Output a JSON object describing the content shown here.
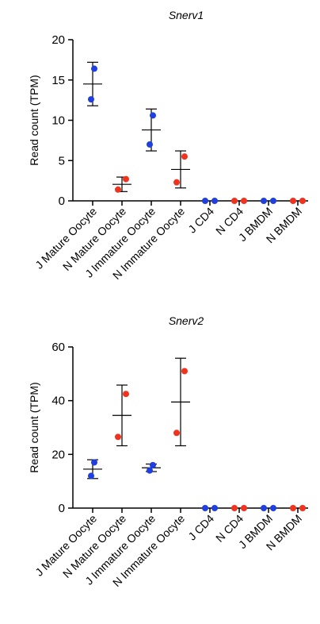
{
  "colors": {
    "J": "#1f3fe0",
    "N": "#f0321e",
    "axis": "#000000",
    "errorbar": "#000000"
  },
  "chart_data": [
    {
      "type": "scatter",
      "title": "Snerv1",
      "ylabel": "Read count (TPM)",
      "xlabel": "",
      "ylim": [
        0,
        20
      ],
      "yticks": [
        0,
        5,
        10,
        15,
        20
      ],
      "grid": false,
      "categories": [
        "J Mature Oocyte",
        "N Mature Oocyte",
        "J Immature Oocyte",
        "N Immature Oocyte",
        "J CD4",
        "N CD4",
        "J BMDM",
        "N BMDM"
      ],
      "groups": [
        {
          "category": "J Mature Oocyte",
          "strain": "J",
          "points": [
            16.4,
            12.6
          ],
          "mean": 14.5,
          "sd": 2.7
        },
        {
          "category": "N Mature Oocyte",
          "strain": "N",
          "points": [
            2.7,
            1.4
          ],
          "mean": 2.05,
          "sd": 0.9
        },
        {
          "category": "J Immature Oocyte",
          "strain": "J",
          "points": [
            10.6,
            7.0
          ],
          "mean": 8.8,
          "sd": 2.6
        },
        {
          "category": "N Immature Oocyte",
          "strain": "N",
          "points": [
            5.5,
            2.3
          ],
          "mean": 3.9,
          "sd": 2.3
        },
        {
          "category": "J CD4",
          "strain": "J",
          "points": [
            0,
            0
          ],
          "mean": 0,
          "sd": 0
        },
        {
          "category": "N CD4",
          "strain": "N",
          "points": [
            0,
            0
          ],
          "mean": 0,
          "sd": 0
        },
        {
          "category": "J BMDM",
          "strain": "J",
          "points": [
            0,
            0
          ],
          "mean": 0,
          "sd": 0
        },
        {
          "category": "N BMDM",
          "strain": "N",
          "points": [
            0,
            0
          ],
          "mean": 0,
          "sd": 0
        }
      ]
    },
    {
      "type": "scatter",
      "title": "Snerv2",
      "ylabel": "Read count (TPM)",
      "xlabel": "",
      "ylim": [
        0,
        60
      ],
      "yticks": [
        0,
        20,
        40,
        60
      ],
      "grid": false,
      "categories": [
        "J Mature Oocyte",
        "N Mature Oocyte",
        "J Immature Oocyte",
        "N Immature Oocyte",
        "J CD4",
        "N CD4",
        "J BMDM",
        "N BMDM"
      ],
      "groups": [
        {
          "category": "J Mature Oocyte",
          "strain": "J",
          "points": [
            17.0,
            12.0
          ],
          "mean": 14.5,
          "sd": 3.5
        },
        {
          "category": "N Mature Oocyte",
          "strain": "N",
          "points": [
            42.5,
            26.5
          ],
          "mean": 34.5,
          "sd": 11.3
        },
        {
          "category": "J Immature Oocyte",
          "strain": "J",
          "points": [
            16.0,
            14.0
          ],
          "mean": 15.0,
          "sd": 1.4
        },
        {
          "category": "N Immature Oocyte",
          "strain": "N",
          "points": [
            51.0,
            28.0
          ],
          "mean": 39.5,
          "sd": 16.3
        },
        {
          "category": "J CD4",
          "strain": "J",
          "points": [
            0,
            0
          ],
          "mean": 0,
          "sd": 0
        },
        {
          "category": "N CD4",
          "strain": "N",
          "points": [
            0,
            0
          ],
          "mean": 0,
          "sd": 0
        },
        {
          "category": "J BMDM",
          "strain": "J",
          "points": [
            0,
            0
          ],
          "mean": 0,
          "sd": 0
        },
        {
          "category": "N BMDM",
          "strain": "N",
          "points": [
            0,
            0
          ],
          "mean": 0,
          "sd": 0
        }
      ]
    }
  ]
}
